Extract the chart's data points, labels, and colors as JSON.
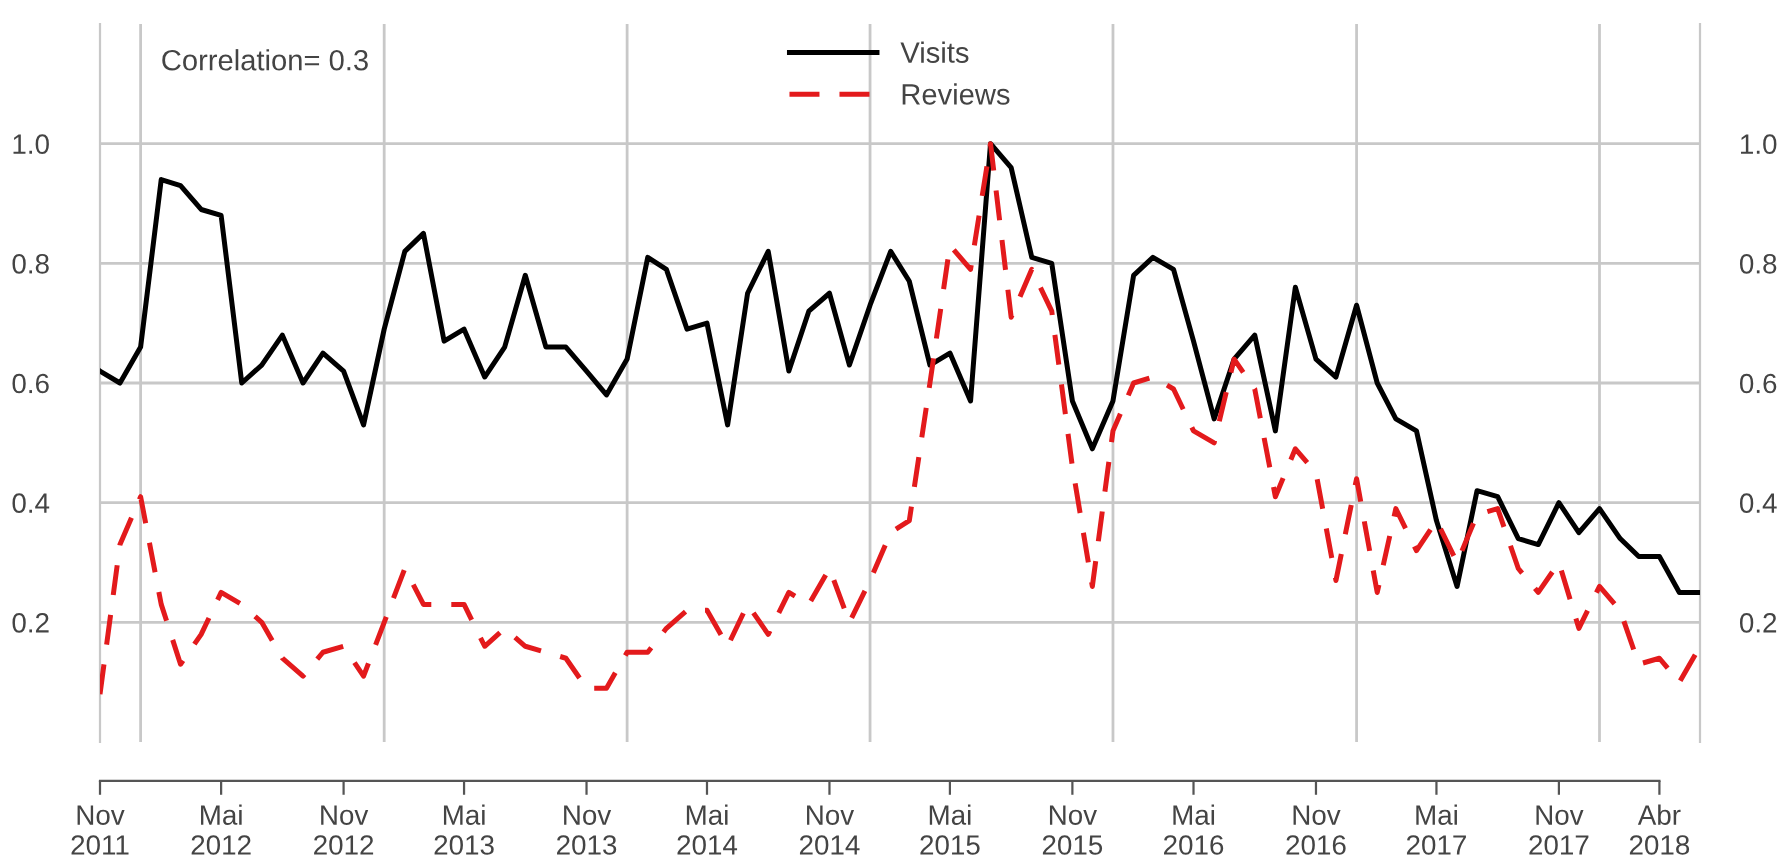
{
  "chart_data": {
    "type": "line",
    "x": [
      "2011-11",
      "2011-12",
      "2012-01",
      "2012-02",
      "2012-03",
      "2012-04",
      "2012-05",
      "2012-06",
      "2012-07",
      "2012-08",
      "2012-09",
      "2012-10",
      "2012-11",
      "2012-12",
      "2013-01",
      "2013-02",
      "2013-03",
      "2013-04",
      "2013-05",
      "2013-06",
      "2013-07",
      "2013-08",
      "2013-09",
      "2013-10",
      "2013-11",
      "2013-12",
      "2014-01",
      "2014-02",
      "2014-03",
      "2014-04",
      "2014-05",
      "2014-06",
      "2014-07",
      "2014-08",
      "2014-09",
      "2014-10",
      "2014-11",
      "2014-12",
      "2015-01",
      "2015-02",
      "2015-03",
      "2015-04",
      "2015-05",
      "2015-06",
      "2015-07",
      "2015-08",
      "2015-09",
      "2015-10",
      "2015-11",
      "2015-12",
      "2016-01",
      "2016-02",
      "2016-03",
      "2016-04",
      "2016-05",
      "2016-06",
      "2016-07",
      "2016-08",
      "2016-09",
      "2016-10",
      "2016-11",
      "2016-12",
      "2017-01",
      "2017-02",
      "2017-03",
      "2017-04",
      "2017-05",
      "2017-06",
      "2017-07",
      "2017-08",
      "2017-09",
      "2017-10",
      "2017-11",
      "2017-12",
      "2018-01",
      "2018-02",
      "2018-03",
      "2018-04",
      "2018-05",
      "2018-06"
    ],
    "series": [
      {
        "name": "Visits",
        "color": "#000000",
        "line_style": "solid",
        "values": [
          0.62,
          0.6,
          0.66,
          0.94,
          0.93,
          0.89,
          0.88,
          0.6,
          0.63,
          0.68,
          0.6,
          0.65,
          0.62,
          0.53,
          0.69,
          0.82,
          0.85,
          0.67,
          0.69,
          0.61,
          0.66,
          0.78,
          0.66,
          0.66,
          0.62,
          0.58,
          0.64,
          0.81,
          0.79,
          0.69,
          0.7,
          0.53,
          0.75,
          0.82,
          0.62,
          0.72,
          0.75,
          0.63,
          0.73,
          0.82,
          0.77,
          0.63,
          0.65,
          0.57,
          1.0,
          0.96,
          0.81,
          0.8,
          0.57,
          0.49,
          0.57,
          0.78,
          0.81,
          0.79,
          0.67,
          0.54,
          0.64,
          0.68,
          0.52,
          0.76,
          0.64,
          0.61,
          0.73,
          0.6,
          0.54,
          0.52,
          0.37,
          0.26,
          0.42,
          0.41,
          0.34,
          0.33,
          0.4,
          0.35,
          0.39,
          0.34,
          0.31,
          0.31,
          0.25,
          0.25
        ]
      },
      {
        "name": "Reviews",
        "color": "#e31a1c",
        "line_style": "dashed",
        "values": [
          0.08,
          0.33,
          0.41,
          0.23,
          0.13,
          0.18,
          0.25,
          0.23,
          0.2,
          0.14,
          0.11,
          0.15,
          0.16,
          0.11,
          0.2,
          0.29,
          0.23,
          0.23,
          0.23,
          0.16,
          0.19,
          0.16,
          0.15,
          0.14,
          0.09,
          0.09,
          0.15,
          0.15,
          0.19,
          0.22,
          0.22,
          0.16,
          0.23,
          0.18,
          0.25,
          0.23,
          0.29,
          0.2,
          0.27,
          0.35,
          0.37,
          0.6,
          0.83,
          0.79,
          1.0,
          0.71,
          0.79,
          0.72,
          0.46,
          0.26,
          0.52,
          0.6,
          0.61,
          0.59,
          0.52,
          0.5,
          0.64,
          0.59,
          0.41,
          0.49,
          0.45,
          0.27,
          0.44,
          0.25,
          0.39,
          0.32,
          0.37,
          0.3,
          0.38,
          0.39,
          0.29,
          0.25,
          0.3,
          0.19,
          0.26,
          0.22,
          0.13,
          0.14,
          0.1,
          0.16
        ]
      }
    ],
    "ylim": [
      0,
      1.2
    ],
    "yticks": [
      0.2,
      0.4,
      0.6,
      0.8,
      {
        "value": 1.0,
        "label": "1.0"
      }
    ],
    "y2lim": [
      0,
      1.2
    ],
    "y2ticks": [
      0.2,
      0.4,
      0.6,
      0.8,
      {
        "value": 1.0,
        "label": "1.0"
      }
    ],
    "xlim": [
      "2011-11",
      "2018-06"
    ],
    "xticks": [
      {
        "value": "2011-11",
        "label": "Nov\n2011"
      },
      {
        "value": "2012-05",
        "label": "Mai\n2012"
      },
      {
        "value": "2012-11",
        "label": "Nov\n2012"
      },
      {
        "value": "2013-05",
        "label": "Mai\n2013"
      },
      {
        "value": "2013-11",
        "label": "Nov\n2013"
      },
      {
        "value": "2014-05",
        "label": "Mai\n2014"
      },
      {
        "value": "2014-11",
        "label": "Nov\n2014"
      },
      {
        "value": "2015-05",
        "label": "Mai\n2015"
      },
      {
        "value": "2015-11",
        "label": "Nov\n2015"
      },
      {
        "value": "2016-05",
        "label": "Mai\n2016"
      },
      {
        "value": "2016-11",
        "label": "Nov\n2016"
      },
      {
        "value": "2017-05",
        "label": "Mai\n2017"
      },
      {
        "value": "2017-11",
        "label": "Nov\n2017"
      },
      {
        "value": "2018-04",
        "label": "Abr\n2018"
      }
    ],
    "ref_lines": [
      {
        "axis": "x",
        "value": "2012-01",
        "color": "#c8c8c8"
      },
      {
        "axis": "x",
        "value": "2013-01",
        "color": "#c8c8c8"
      },
      {
        "axis": "x",
        "value": "2014-01",
        "color": "#c8c8c8"
      },
      {
        "axis": "x",
        "value": "2015-01",
        "color": "#c8c8c8"
      },
      {
        "axis": "x",
        "value": "2016-01",
        "color": "#c8c8c8"
      },
      {
        "axis": "x",
        "value": "2017-01",
        "color": "#c8c8c8"
      },
      {
        "axis": "x",
        "value": "2018-01",
        "color": "#c8c8c8"
      }
    ],
    "grid": "y",
    "legend": "top",
    "marker": "none",
    "annotations": [
      "Correlation= 0.3"
    ]
  }
}
